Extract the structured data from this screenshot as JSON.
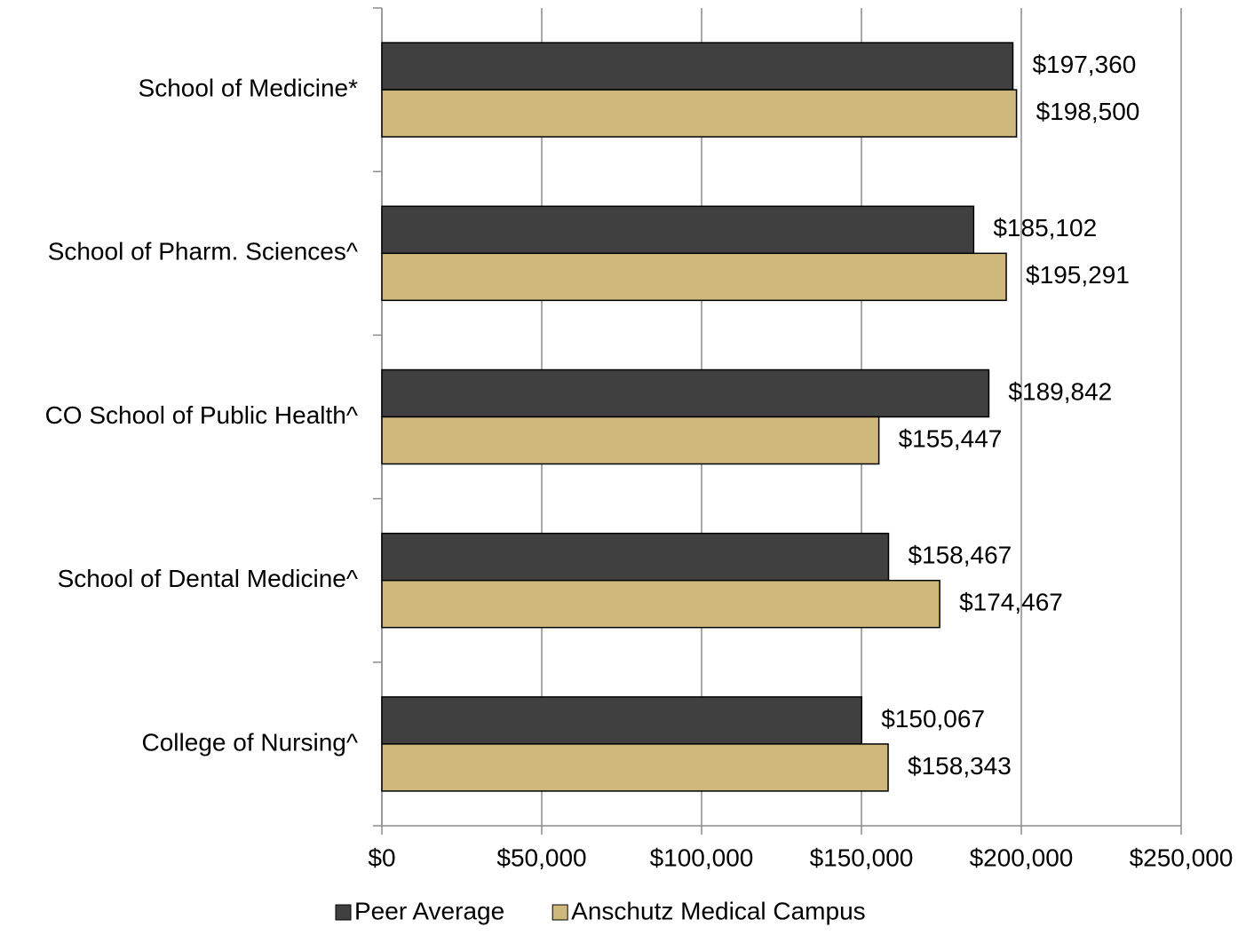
{
  "chart_data": {
    "type": "hbar",
    "categories": [
      "School of Medicine*",
      "School of Pharm. Sciences^",
      "CO School of Public Health^",
      "School of Dental Medicine^",
      "College of Nursing^"
    ],
    "series": [
      {
        "name": "Peer Average",
        "color": "#404040",
        "values": [
          197360,
          185102,
          189842,
          158467,
          150067
        ],
        "value_labels": [
          "$197,360",
          "$185,102",
          "$189,842",
          "$158,467",
          "$150,067"
        ]
      },
      {
        "name": "Anschutz Medical Campus",
        "color": "#cfb87c",
        "values": [
          198500,
          195291,
          155447,
          174467,
          158343
        ],
        "value_labels": [
          "$198,500",
          "$195,291",
          "$155,447",
          "$174,467",
          "$158,343"
        ]
      }
    ],
    "xlim": [
      0,
      250000
    ],
    "xticks": [
      {
        "value": 0,
        "label": "$0"
      },
      {
        "value": 50000,
        "label": "$50,000"
      },
      {
        "value": 100000,
        "label": "$100,000"
      },
      {
        "value": 150000,
        "label": "$150,000"
      },
      {
        "value": 200000,
        "label": "$200,000"
      },
      {
        "value": 250000,
        "label": "$250,000"
      }
    ],
    "grid": true,
    "legend": "bottom"
  }
}
